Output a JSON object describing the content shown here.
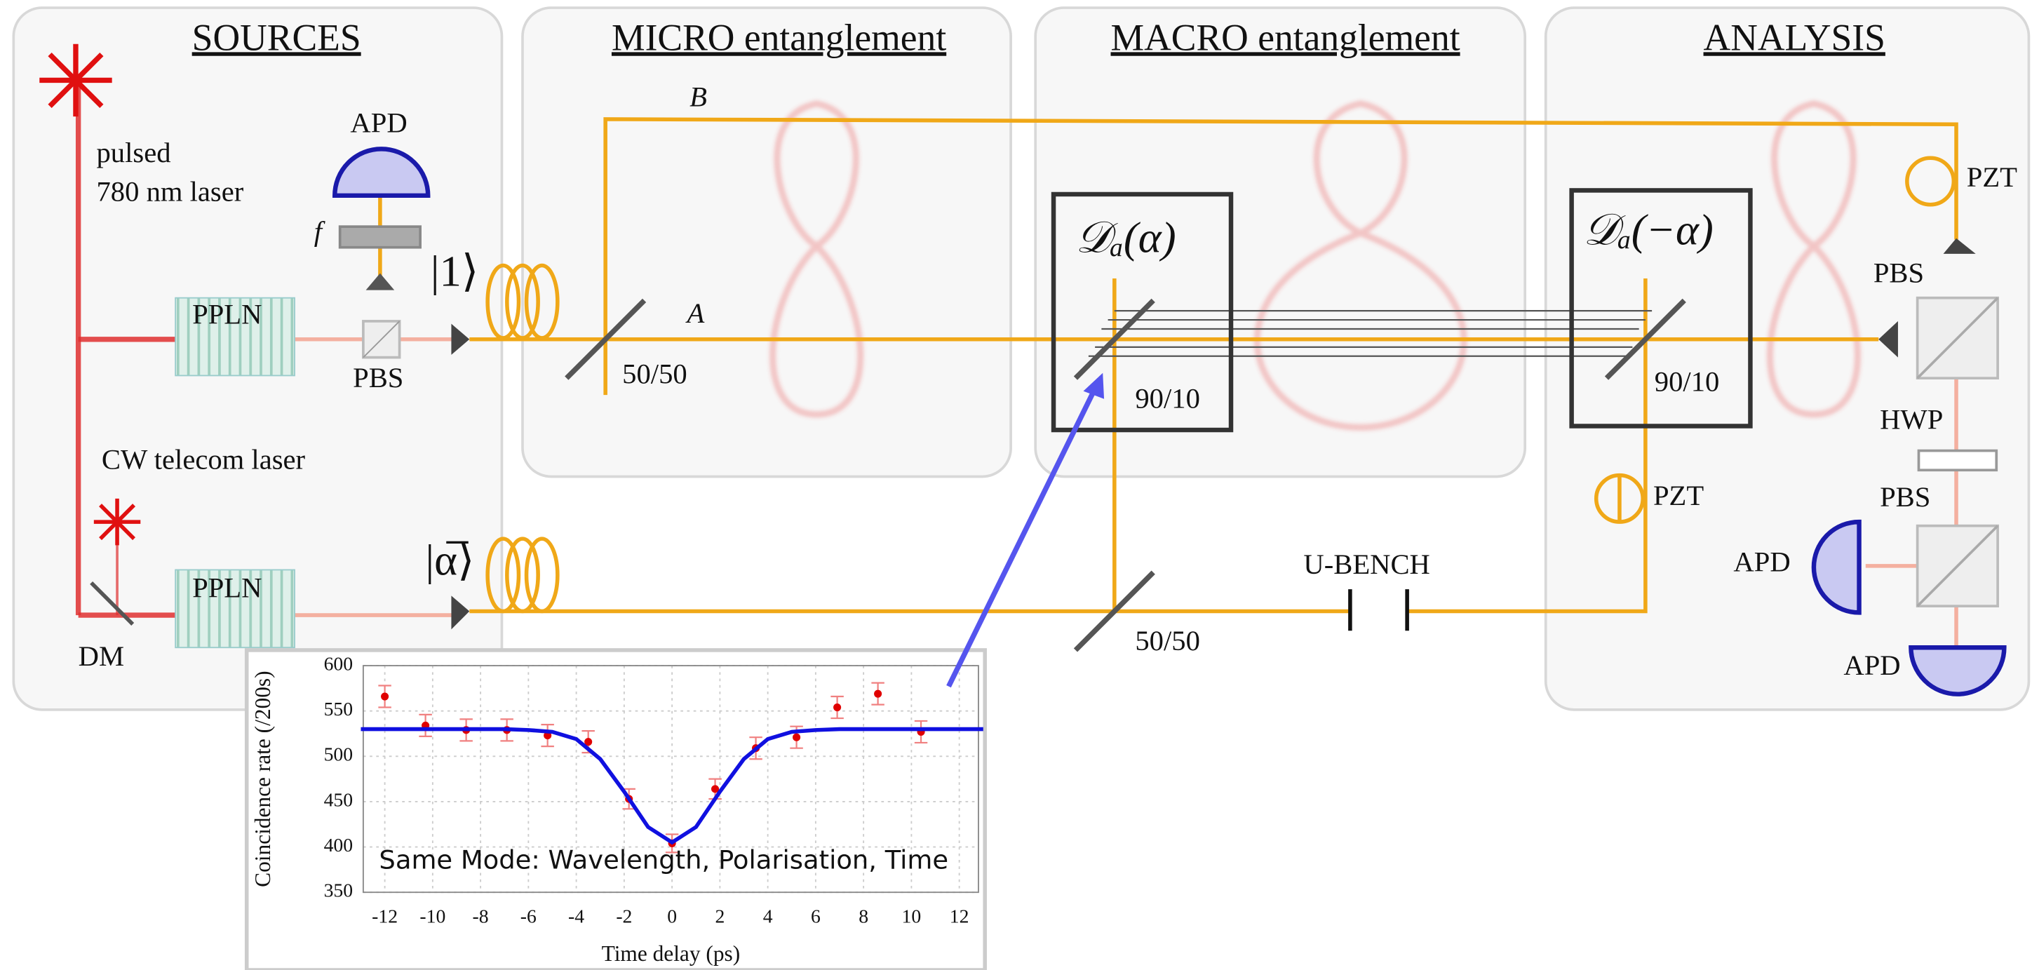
{
  "sections": [
    "SOURCES",
    "MICRO entanglement",
    "MACRO entanglement",
    "ANALYSIS"
  ],
  "labels": {
    "pulsed": "pulsed",
    "laser780": "780 nm laser",
    "cw": "CW telecom laser",
    "ppln_top": "PPLN",
    "ppln_bottom": "PPLN",
    "apd_source": "APD",
    "filter": "f",
    "pbs_source": "PBS",
    "dm": "DM",
    "ket_one": "|1⟩",
    "ket_alpha": "|α̅⟩",
    "path_b": "B",
    "path_a": "A",
    "bs_micro": "50/50",
    "disp_plus": "𝒟ₐ(α)",
    "split_plus": "90/10",
    "bs_macro": "50/50",
    "disp_minus": "𝒟ₐ(−α)",
    "split_minus": "90/10",
    "pzt_top": "PZT",
    "pzt_bottom": "PZT",
    "ubench": "U-BENCH",
    "pbs_analysis_top": "PBS",
    "hwp": "HWP",
    "pbs_analysis_bottom": "PBS",
    "apd_left": "APD",
    "apd_bottom": "APD"
  },
  "chart_data": {
    "type": "scatter",
    "annotation": "Same Mode: Wavelength, Polarisation, Time",
    "x_label": "Time delay (ps)",
    "y_label": "Coincidence rate (/200s)",
    "xlim": [
      -12.9,
      12.8
    ],
    "ylim": [
      350,
      600
    ],
    "xticks": [
      -12,
      -10,
      -8,
      -6,
      -4,
      -2,
      0,
      2,
      4,
      6,
      8,
      10,
      12
    ],
    "yticks": [
      350,
      400,
      450,
      500,
      550,
      600
    ],
    "grid": true,
    "series": [
      {
        "type": "scatter",
        "color": "#e00000",
        "error_color": "#f08080",
        "x": [
          -12,
          -10.3,
          -8.6,
          -6.9,
          -5.2,
          -3.5,
          -1.8,
          0,
          1.8,
          3.5,
          5.2,
          6.9,
          8.6,
          10.4
        ],
        "values": [
          566,
          534,
          529,
          529,
          523,
          516,
          453,
          404,
          464,
          509,
          521,
          554,
          569,
          527
        ],
        "errors": [
          12,
          12,
          12,
          12,
          12,
          12,
          11,
          10,
          11,
          12,
          12,
          12,
          12,
          12
        ]
      },
      {
        "type": "line",
        "color": "#1010e0",
        "x": [
          -13,
          -12,
          -11,
          -10,
          -9,
          -8,
          -7,
          -6,
          -5,
          -4,
          -3,
          -2,
          -1,
          0,
          1,
          2,
          3,
          4,
          5,
          6,
          7,
          8,
          9,
          10,
          11,
          12,
          13
        ],
        "values": [
          530,
          530,
          530,
          530,
          530,
          530,
          530,
          529,
          527,
          519,
          497,
          461,
          422,
          405,
          422,
          461,
          497,
          519,
          527,
          529,
          530,
          530,
          530,
          530,
          530,
          530,
          530
        ]
      }
    ]
  }
}
